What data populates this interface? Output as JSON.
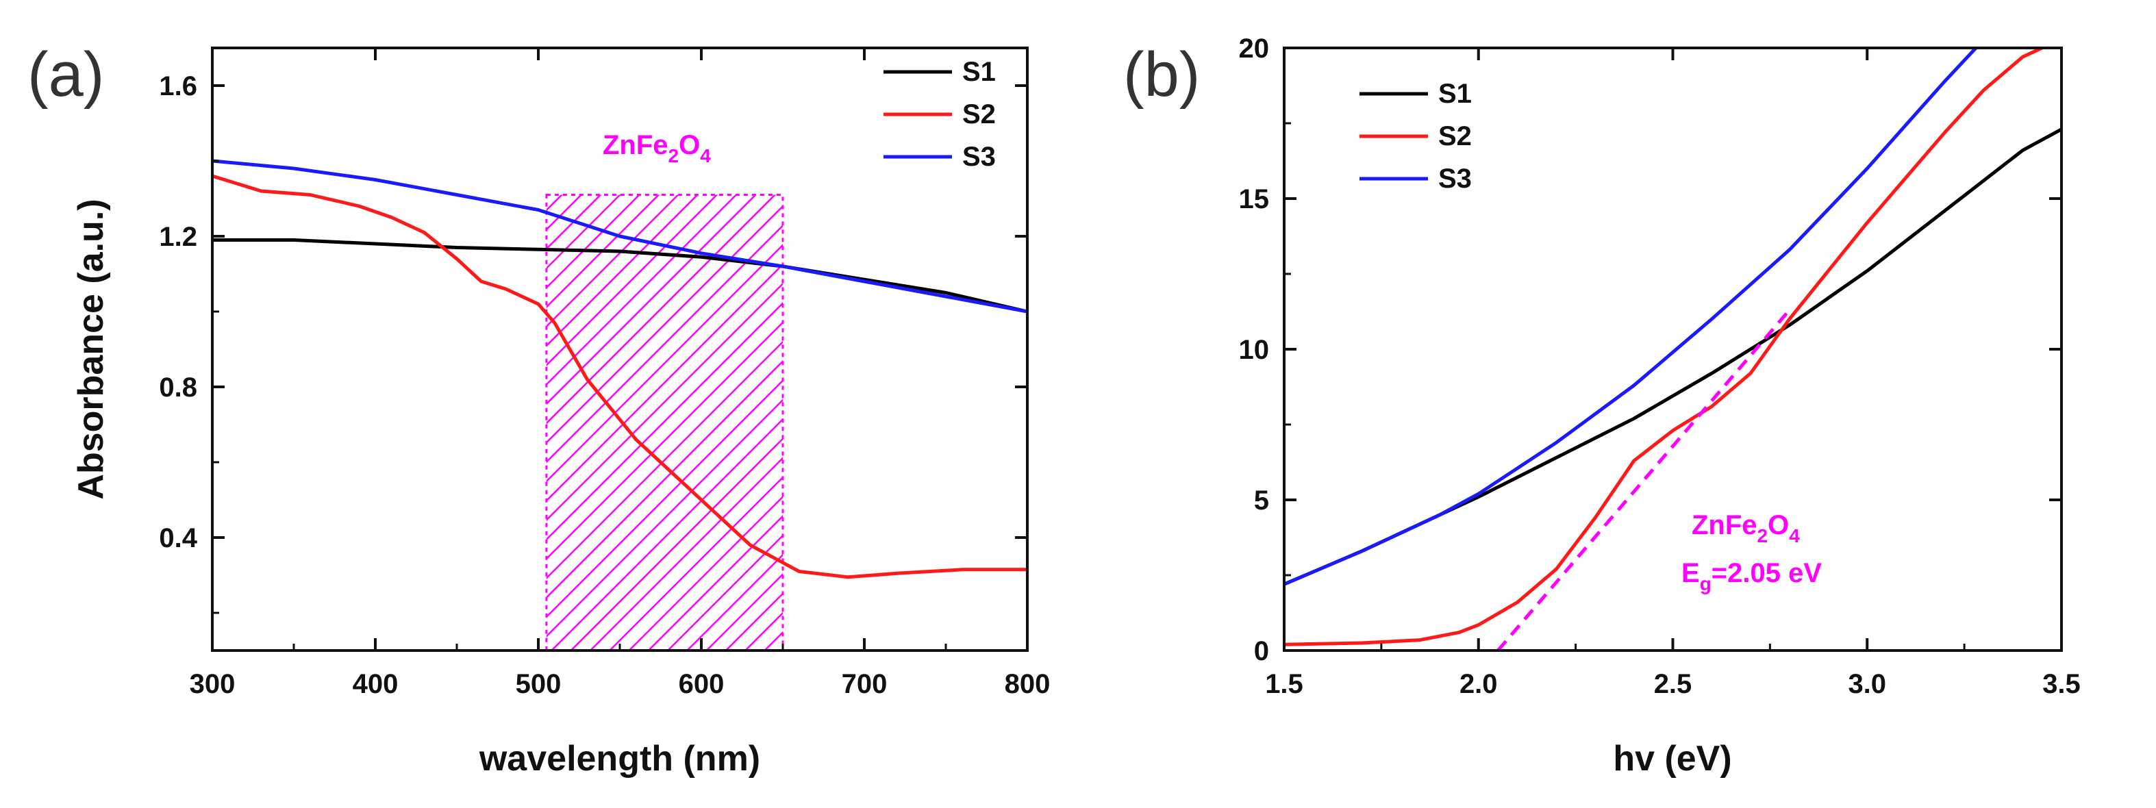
{
  "figure": {
    "panels": [
      {
        "label": "(a)"
      },
      {
        "label": "(b)"
      }
    ],
    "colors": {
      "S1": "#000000",
      "S2": "#ff1a1a",
      "S3": "#1a1aff",
      "annotation": "#ff00ff"
    }
  },
  "chart_data": [
    {
      "type": "line",
      "panel": "(a)",
      "xlabel": "wavelength (nm)",
      "ylabel": "Absorbance (a.u.)",
      "xlim": [
        300,
        800
      ],
      "ylim": [
        0.1,
        1.7
      ],
      "xticks": [
        300,
        400,
        500,
        600,
        700,
        800
      ],
      "xtick_labels": [
        "300",
        "400",
        "500",
        "600",
        "700",
        "800"
      ],
      "yticks": [
        0.4,
        0.8,
        1.2,
        1.6
      ],
      "ytick_labels": [
        "0.4",
        "0.8",
        "1.2",
        "1.6"
      ],
      "legend_position": "top-right",
      "series": [
        {
          "name": "S1",
          "x": [
            300,
            350,
            400,
            450,
            500,
            550,
            600,
            650,
            700,
            750,
            800
          ],
          "y": [
            1.19,
            1.19,
            1.18,
            1.17,
            1.165,
            1.16,
            1.145,
            1.12,
            1.085,
            1.05,
            1.0
          ]
        },
        {
          "name": "S2",
          "x": [
            300,
            330,
            360,
            390,
            410,
            430,
            450,
            465,
            480,
            500,
            510,
            530,
            560,
            600,
            630,
            660,
            690,
            720,
            760,
            800
          ],
          "y": [
            1.36,
            1.32,
            1.31,
            1.28,
            1.25,
            1.21,
            1.14,
            1.08,
            1.06,
            1.02,
            0.97,
            0.82,
            0.66,
            0.5,
            0.38,
            0.31,
            0.295,
            0.305,
            0.315,
            0.315
          ]
        },
        {
          "name": "S3",
          "x": [
            300,
            350,
            400,
            450,
            500,
            550,
            600,
            650,
            700,
            750,
            800
          ],
          "y": [
            1.4,
            1.38,
            1.35,
            1.31,
            1.27,
            1.2,
            1.155,
            1.12,
            1.08,
            1.04,
            1.0
          ]
        }
      ],
      "annotations": [
        {
          "text": "ZnFe",
          "sub1": "2",
          "mid": "O",
          "sub2": "4",
          "kind": "label"
        }
      ],
      "shaded_region": {
        "x_range": [
          505,
          650
        ],
        "y_range": [
          0.1,
          1.31
        ],
        "pattern": "diagonal-hatch"
      }
    },
    {
      "type": "line",
      "panel": "(b)",
      "xlabel": "hv (eV)",
      "ylabel": "",
      "xlim": [
        1.5,
        3.5
      ],
      "ylim": [
        0,
        20
      ],
      "xticks": [
        1.5,
        2.0,
        2.5,
        3.0,
        3.5
      ],
      "xtick_labels": [
        "1.5",
        "2.0",
        "2.5",
        "3.0",
        "3.5"
      ],
      "yticks": [
        0,
        5,
        10,
        15,
        20
      ],
      "ytick_labels": [
        "0",
        "5",
        "10",
        "15",
        "20"
      ],
      "legend_position": "top-left",
      "series": [
        {
          "name": "S1",
          "x": [
            1.5,
            1.7,
            1.9,
            2.0,
            2.2,
            2.4,
            2.6,
            2.8,
            3.0,
            3.2,
            3.4,
            3.5
          ],
          "y": [
            2.2,
            3.3,
            4.5,
            5.1,
            6.4,
            7.7,
            9.2,
            10.8,
            12.6,
            14.6,
            16.6,
            17.3
          ]
        },
        {
          "name": "S2",
          "x": [
            1.5,
            1.7,
            1.85,
            1.95,
            2.0,
            2.1,
            2.2,
            2.3,
            2.4,
            2.5,
            2.6,
            2.7,
            2.8,
            2.9,
            3.0,
            3.1,
            3.2,
            3.3,
            3.4,
            3.45
          ],
          "y": [
            0.2,
            0.25,
            0.35,
            0.6,
            0.85,
            1.6,
            2.7,
            4.4,
            6.3,
            7.3,
            8.1,
            9.2,
            11.0,
            12.6,
            14.2,
            15.7,
            17.2,
            18.6,
            19.7,
            20
          ]
        },
        {
          "name": "S3",
          "x": [
            1.5,
            1.7,
            1.9,
            2.0,
            2.2,
            2.4,
            2.6,
            2.8,
            3.0,
            3.2,
            3.28
          ],
          "y": [
            2.2,
            3.3,
            4.5,
            5.2,
            6.9,
            8.8,
            11.0,
            13.3,
            16.0,
            18.9,
            20
          ]
        }
      ],
      "fit_line": {
        "x": [
          2.05,
          2.8
        ],
        "y": [
          0,
          11.3
        ],
        "style": "dashed"
      },
      "annotations": [
        {
          "text": "ZnFe",
          "sub1": "2",
          "mid": "O",
          "sub2": "4",
          "kind": "label"
        },
        {
          "text": "E",
          "sub1": "g",
          "mid": "=2.05 eV",
          "sub2": "",
          "kind": "bandgap"
        }
      ]
    }
  ]
}
